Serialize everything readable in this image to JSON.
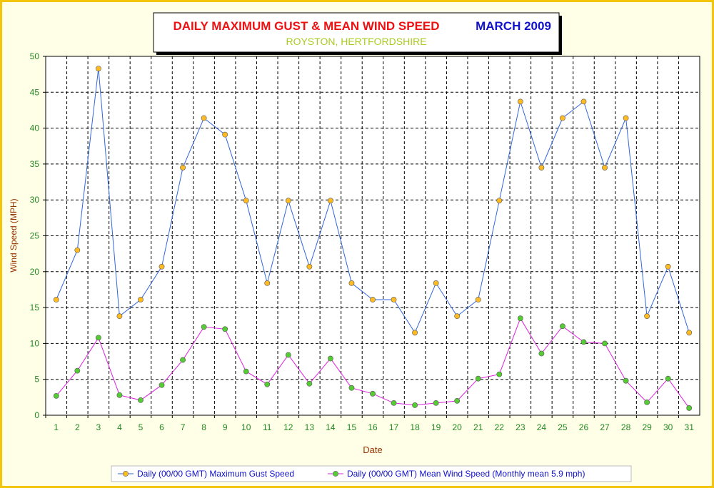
{
  "colors": {
    "background": "#ffffe8",
    "frame": "#f2c40a",
    "title_main": "#ee1111",
    "title_month": "#1111cc",
    "subtitle": "#aacc22",
    "gust_line": "#3366dd",
    "gust_marker": "#ffbb22",
    "mean_line": "#dd22dd",
    "mean_marker": "#55cc33",
    "axis_text": "#228822",
    "axis_title": "#993300"
  },
  "chart_data": {
    "type": "line",
    "title": "DAILY MAXIMUM GUST & MEAN WIND SPEED",
    "title_right": "MARCH 2009",
    "subtitle": "ROYSTON, HERTFORDSHIRE",
    "xlabel": "Date",
    "ylabel": "Wind Speed (MPH)",
    "ylim": [
      0,
      50
    ],
    "yticks": [
      "0",
      "5",
      "10",
      "15",
      "20",
      "25",
      "30",
      "35",
      "40",
      "45",
      "50"
    ],
    "grid": true,
    "legend_position": "bottom",
    "categories": [
      "1",
      "2",
      "3",
      "4",
      "5",
      "6",
      "7",
      "8",
      "9",
      "10",
      "11",
      "12",
      "13",
      "14",
      "15",
      "16",
      "17",
      "18",
      "19",
      "20",
      "21",
      "22",
      "23",
      "24",
      "25",
      "26",
      "27",
      "28",
      "29",
      "30",
      "31"
    ],
    "series": [
      {
        "name": "Daily (00/00 GMT) Maximum Gust Speed",
        "values": [
          16.1,
          23.0,
          48.3,
          13.8,
          16.1,
          20.7,
          34.5,
          41.4,
          39.1,
          29.9,
          18.4,
          29.9,
          20.7,
          29.9,
          18.4,
          16.1,
          16.1,
          11.5,
          18.4,
          13.8,
          16.1,
          29.9,
          43.7,
          34.5,
          41.4,
          43.7,
          34.5,
          41.4,
          13.8,
          20.7,
          11.5
        ]
      },
      {
        "name": "Daily (00/00 GMT) Mean Wind Speed (Monthly mean 5.9 mph)",
        "values": [
          2.7,
          6.2,
          10.8,
          2.8,
          2.1,
          4.2,
          7.7,
          12.3,
          12.0,
          6.1,
          4.3,
          8.4,
          4.4,
          7.9,
          3.8,
          3.0,
          1.7,
          1.4,
          1.7,
          2.0,
          5.1,
          5.7,
          13.5,
          8.6,
          12.4,
          10.2,
          10.0,
          4.8,
          1.8,
          5.1,
          1.0
        ]
      }
    ]
  }
}
